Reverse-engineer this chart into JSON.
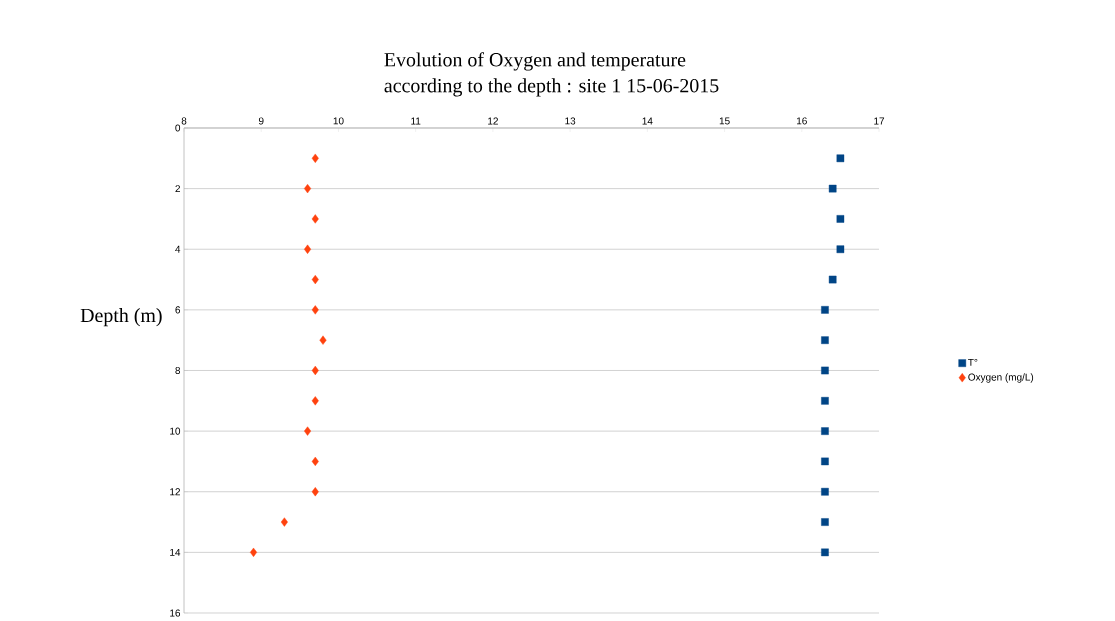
{
  "chart_data": {
    "type": "scatter",
    "title": "Evolution of Oxygen and temperature",
    "subtitle": "according to the depth : site 1   15-06-2015",
    "ylabel": "Depth (m)",
    "xlim": [
      8,
      17
    ],
    "xticks": [
      8,
      9,
      10,
      11,
      12,
      13,
      14,
      15,
      16,
      17
    ],
    "ylim": [
      16,
      0
    ],
    "yticks": [
      0,
      2,
      4,
      6,
      8,
      10,
      12,
      14,
      16
    ],
    "grid": "y",
    "legend": "right",
    "series": [
      {
        "name": "T°",
        "color": "#004586",
        "marker": "square",
        "x": [
          16.5,
          16.4,
          16.5,
          16.5,
          16.4,
          16.3,
          16.3,
          16.3,
          16.3,
          16.3,
          16.3,
          16.3,
          16.3,
          16.3
        ],
        "values": [
          1,
          2,
          3,
          4,
          5,
          6,
          7,
          8,
          9,
          10,
          11,
          12,
          13,
          14
        ]
      },
      {
        "name": "Oxygen (mg/L)",
        "color": "#ff420e",
        "marker": "diamond",
        "x": [
          9.7,
          9.6,
          9.7,
          9.6,
          9.7,
          9.7,
          9.8,
          9.7,
          9.7,
          9.6,
          9.7,
          9.7,
          9.3,
          8.9
        ],
        "values": [
          1,
          2,
          3,
          4,
          5,
          6,
          7,
          8,
          9,
          10,
          11,
          12,
          13,
          14
        ]
      }
    ]
  }
}
